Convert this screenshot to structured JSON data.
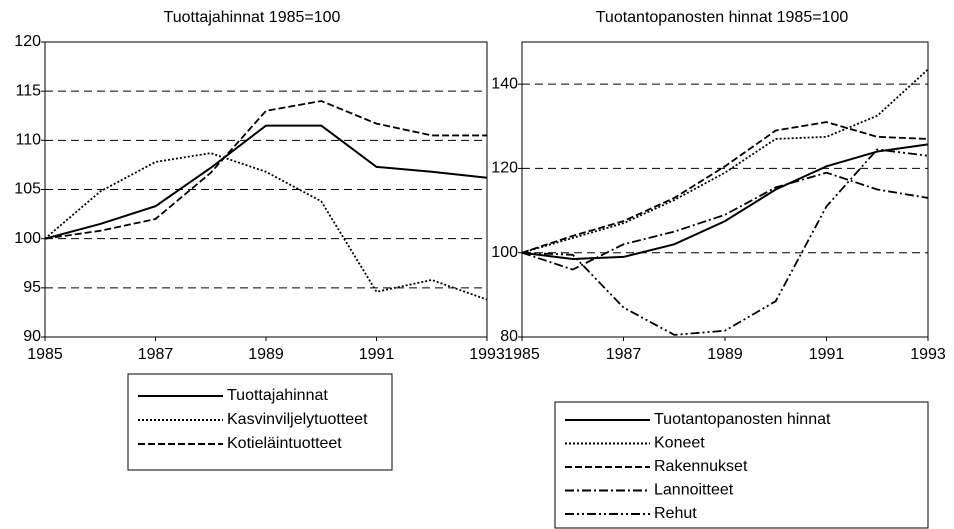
{
  "chart_data": [
    {
      "type": "line",
      "title": "Tuottajahinnat 1985=100",
      "x": [
        1985,
        1986,
        1987,
        1988,
        1989,
        1990,
        1991,
        1992,
        1993
      ],
      "xlim": [
        1985,
        1993
      ],
      "xticks": [
        1985,
        1987,
        1989,
        1991,
        1993
      ],
      "ylim": [
        90,
        120
      ],
      "yticks": [
        90,
        95,
        100,
        105,
        110,
        115,
        120
      ],
      "grid": true,
      "series": [
        {
          "name": "Tuottajahinnat",
          "color": "#000000",
          "style": "solid",
          "values": [
            100,
            101.5,
            103.3,
            107.2,
            111.5,
            111.5,
            107.3,
            106.8,
            106.2
          ]
        },
        {
          "name": "Kasvinviljelytuotteet",
          "color": "#000000",
          "style": "dotted",
          "values": [
            100,
            104.8,
            107.8,
            108.7,
            106.8,
            103.8,
            94.6,
            95.8,
            93.8
          ]
        },
        {
          "name": "Kotieläintuotteet",
          "color": "#000000",
          "style": "dashed",
          "values": [
            100,
            100.8,
            102,
            106.7,
            113,
            114,
            111.7,
            110.5,
            110.5
          ]
        }
      ]
    },
    {
      "type": "line",
      "title": "Tuotantopanosten hinnat 1985=100",
      "x": [
        1985,
        1986,
        1987,
        1988,
        1989,
        1990,
        1991,
        1992,
        1993
      ],
      "xlim": [
        1985,
        1993
      ],
      "xticks": [
        1985,
        1987,
        1989,
        1991,
        1993
      ],
      "ylim": [
        80,
        150
      ],
      "yticks": [
        80,
        100,
        120,
        140
      ],
      "grid": true,
      "series": [
        {
          "name": "Tuotantopanosten hinnat",
          "color": "#000000",
          "style": "solid",
          "values": [
            100,
            98.5,
            99,
            102,
            107.5,
            115,
            120.5,
            124,
            125.7
          ]
        },
        {
          "name": "Koneet",
          "color": "#000000",
          "style": "dotted",
          "values": [
            100,
            103.5,
            107,
            112.5,
            119,
            127,
            127.5,
            132.5,
            143.5
          ]
        },
        {
          "name": "Rakennukset",
          "color": "#000000",
          "style": "dashed",
          "values": [
            100,
            104,
            107.5,
            113,
            120.5,
            129,
            131,
            127.5,
            127
          ]
        },
        {
          "name": "Lannoitteet",
          "color": "#000000",
          "style": "dashdot",
          "values": [
            100,
            96,
            102,
            105,
            109,
            115.5,
            119,
            115,
            113
          ]
        },
        {
          "name": "Rehut",
          "color": "#000000",
          "style": "dashdotdot",
          "values": [
            100,
            99.5,
            87,
            80.5,
            81.5,
            88.5,
            111,
            124.5,
            123
          ]
        }
      ]
    }
  ]
}
